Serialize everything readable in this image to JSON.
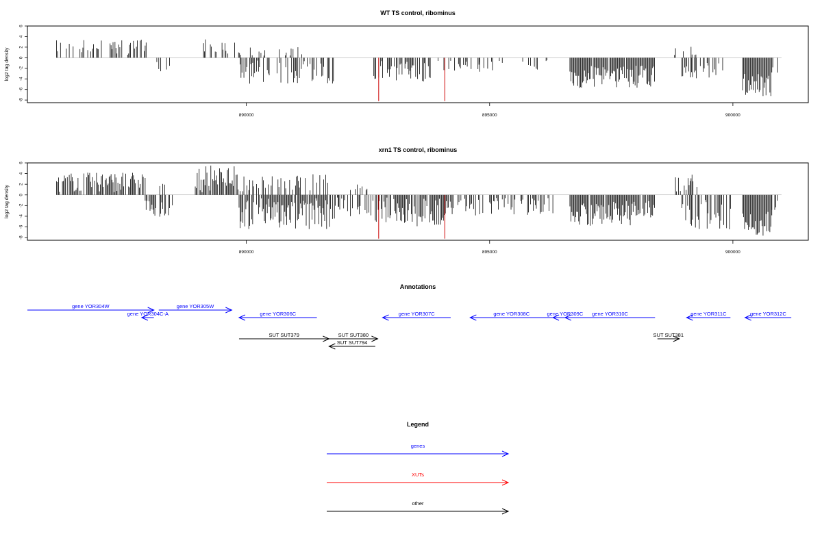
{
  "chart_data": [
    {
      "type": "bar",
      "title": "WT TS control, ribominus",
      "ylabel": "log2 tag density",
      "ylim": [
        -8.5,
        6
      ],
      "xlim": [
        885500,
        901550
      ],
      "yticks": [
        6,
        4,
        2,
        0,
        -2,
        -4,
        -6,
        -8
      ],
      "xticks": [
        "890000",
        "895000",
        "900000"
      ],
      "x_tick_values": [
        890000,
        895000,
        900000
      ],
      "bar_color": "#000000",
      "highlight_color": "#cc0000",
      "segments": [
        {
          "start": 886100,
          "end": 887950,
          "strand": "+",
          "min": 0.5,
          "max": 3.5,
          "density": 0.45
        },
        {
          "start": 888100,
          "end": 888500,
          "strand": "-",
          "min": 0.5,
          "max": 2.8,
          "density": 0.35
        },
        {
          "start": 889100,
          "end": 889900,
          "strand": "+",
          "min": 0.5,
          "max": 3.5,
          "density": 0.5
        },
        {
          "start": 889850,
          "end": 891800,
          "strand": "-",
          "min": 0.5,
          "max": 5.2,
          "density": 0.6
        },
        {
          "start": 889900,
          "end": 891500,
          "strand": "+",
          "min": 0.3,
          "max": 2.0,
          "density": 0.15
        },
        {
          "start": 892600,
          "end": 893800,
          "strand": "-",
          "min": 0.5,
          "max": 4.5,
          "density": 0.6
        },
        {
          "start": 893900,
          "end": 894800,
          "strand": "-",
          "min": 0.5,
          "max": 3.0,
          "density": 0.45
        },
        {
          "start": 894800,
          "end": 896200,
          "strand": "-",
          "min": 0.3,
          "max": 2.4,
          "density": 0.15
        },
        {
          "start": 896650,
          "end": 898400,
          "strand": "-",
          "min": 1.5,
          "max": 5.8,
          "density": 0.95
        },
        {
          "start": 898800,
          "end": 899300,
          "strand": "+",
          "min": 0.5,
          "max": 2.3,
          "density": 0.35
        },
        {
          "start": 898950,
          "end": 899800,
          "strand": "-",
          "min": 0.5,
          "max": 4.0,
          "density": 0.5
        },
        {
          "start": 900200,
          "end": 900800,
          "strand": "-",
          "min": 2.5,
          "max": 7.3,
          "density": 1.0
        },
        {
          "start": 900800,
          "end": 900950,
          "strand": "-",
          "min": 1.0,
          "max": 3.0,
          "density": 0.5
        }
      ],
      "red_lines": [
        {
          "x": 892720,
          "value": -8.2
        },
        {
          "x": 894080,
          "value": -8.2
        }
      ]
    },
    {
      "type": "bar",
      "title": "xrn1 TS control, ribominus",
      "ylabel": "log2 tag density",
      "ylim": [
        -8.5,
        6
      ],
      "xlim": [
        885500,
        901550
      ],
      "yticks": [
        6,
        4,
        2,
        0,
        -2,
        -4,
        -6,
        -8
      ],
      "xticks": [
        "890000",
        "895000",
        "900000"
      ],
      "x_tick_values": [
        890000,
        895000,
        900000
      ],
      "bar_color": "#000000",
      "highlight_color": "#cc0000",
      "segments": [
        {
          "start": 886100,
          "end": 887950,
          "strand": "+",
          "min": 0.5,
          "max": 4.2,
          "density": 0.8
        },
        {
          "start": 887900,
          "end": 888500,
          "strand": "-",
          "min": 0.5,
          "max": 4.2,
          "density": 0.6
        },
        {
          "start": 888200,
          "end": 888350,
          "strand": "+",
          "min": 0.5,
          "max": 2.2,
          "density": 0.3
        },
        {
          "start": 888950,
          "end": 889850,
          "strand": "+",
          "min": 0.5,
          "max": 5.5,
          "density": 0.9
        },
        {
          "start": 889850,
          "end": 891900,
          "strand": "-",
          "min": 0.5,
          "max": 6.5,
          "density": 0.9
        },
        {
          "start": 889850,
          "end": 891700,
          "strand": "+",
          "min": 0.5,
          "max": 4.0,
          "density": 0.5
        },
        {
          "start": 891900,
          "end": 892600,
          "strand": "-",
          "min": 0.5,
          "max": 4.0,
          "density": 0.5
        },
        {
          "start": 892100,
          "end": 892500,
          "strand": "+",
          "min": 0.3,
          "max": 2.0,
          "density": 0.25
        },
        {
          "start": 892650,
          "end": 894050,
          "strand": "-",
          "min": 0.5,
          "max": 6.0,
          "density": 0.85
        },
        {
          "start": 894050,
          "end": 894800,
          "strand": "-",
          "min": 0.5,
          "max": 4.0,
          "density": 0.55
        },
        {
          "start": 894800,
          "end": 896400,
          "strand": "-",
          "min": 0.5,
          "max": 4.0,
          "density": 0.45
        },
        {
          "start": 896650,
          "end": 898400,
          "strand": "-",
          "min": 1.0,
          "max": 5.8,
          "density": 0.95
        },
        {
          "start": 898800,
          "end": 899300,
          "strand": "+",
          "min": 0.5,
          "max": 3.8,
          "density": 0.5
        },
        {
          "start": 898950,
          "end": 899950,
          "strand": "-",
          "min": 0.5,
          "max": 6.5,
          "density": 0.7
        },
        {
          "start": 900200,
          "end": 900800,
          "strand": "-",
          "min": 3.0,
          "max": 7.8,
          "density": 1.0
        },
        {
          "start": 900800,
          "end": 900950,
          "strand": "-",
          "min": 1.0,
          "max": 3.0,
          "density": 0.5
        }
      ],
      "red_lines": [
        {
          "x": 892720,
          "value": -8.2
        },
        {
          "x": 894080,
          "value": -8.2
        }
      ]
    }
  ],
  "annotations": {
    "title": "Annotations",
    "xlim": [
      885500,
      901550
    ],
    "features": [
      {
        "label": "gene YOR304W",
        "start": 885500,
        "end": 888100,
        "strand": "+",
        "color": "blue",
        "row": 0
      },
      {
        "label": "gene YOR305W",
        "start": 888200,
        "end": 889700,
        "strand": "+",
        "color": "blue",
        "row": 0
      },
      {
        "label": "gene YOR304C-A",
        "start": 887850,
        "end": 888100,
        "strand": "-",
        "color": "blue",
        "row": 1
      },
      {
        "label": "gene YOR306C",
        "start": 889850,
        "end": 891450,
        "strand": "-",
        "color": "blue",
        "row": 1
      },
      {
        "label": "gene YOR307C",
        "start": 892800,
        "end": 894200,
        "strand": "-",
        "color": "blue",
        "row": 1
      },
      {
        "label": "gene YOR308C",
        "start": 894600,
        "end": 896300,
        "strand": "-",
        "color": "blue",
        "row": 1
      },
      {
        "label": "gene YOR309C",
        "start": 896300,
        "end": 896800,
        "strand": "-",
        "color": "blue",
        "row": 1
      },
      {
        "label": "gene YOR310C",
        "start": 896550,
        "end": 898400,
        "strand": "-",
        "color": "blue",
        "row": 1
      },
      {
        "label": "gene YOR311C",
        "start": 899050,
        "end": 899950,
        "strand": "-",
        "color": "blue",
        "row": 1
      },
      {
        "label": "gene YOR312C",
        "start": 900250,
        "end": 901200,
        "strand": "-",
        "color": "blue",
        "row": 1
      },
      {
        "label": "SUT SUT379",
        "start": 889850,
        "end": 891700,
        "strand": "+",
        "color": "black",
        "row": 2
      },
      {
        "label": "SUT SUT380",
        "start": 891700,
        "end": 892700,
        "strand": "+",
        "color": "black",
        "row": 2
      },
      {
        "label": "SUT SUT381",
        "start": 898450,
        "end": 898900,
        "strand": "+",
        "color": "black",
        "row": 2
      },
      {
        "label": "SUT SUT794",
        "start": 891700,
        "end": 892650,
        "strand": "-",
        "color": "black",
        "row": 3
      }
    ]
  },
  "legend": {
    "title": "Legend",
    "items": [
      {
        "label": "genes",
        "color": "#0000ff"
      },
      {
        "label": "XUTs",
        "color": "#ff0000"
      },
      {
        "label": "other",
        "color": "#000000"
      }
    ]
  }
}
